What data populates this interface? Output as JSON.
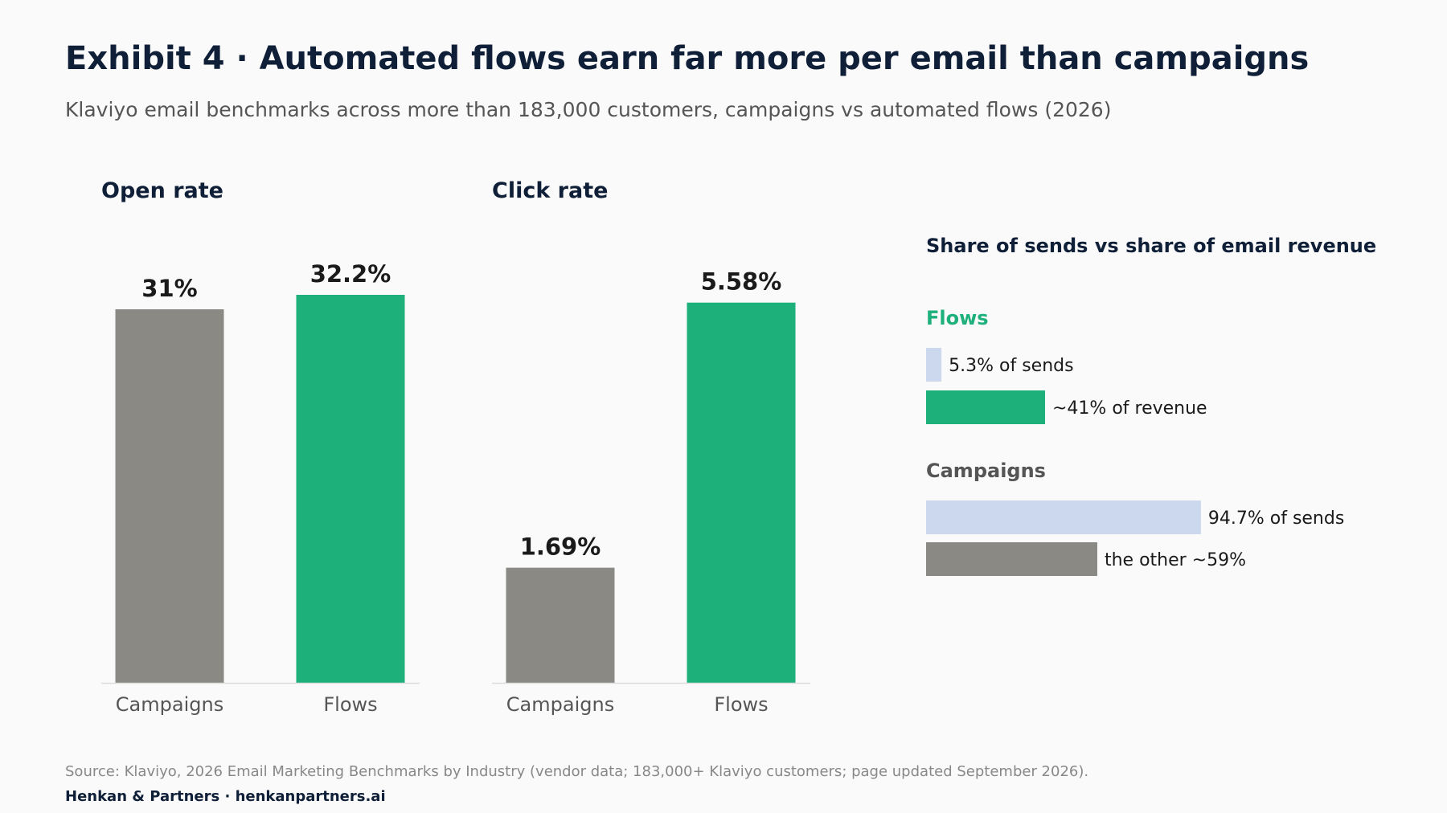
{
  "title": "Exhibit 4 · Automated flows earn far more per email than campaigns",
  "subtitle": "Klaviyo email benchmarks across more than 183,000 customers, campaigns vs automated flows (2026)",
  "colors": {
    "campaigns": "#8a8984",
    "flows": "#1db07b",
    "sends": "#cbd8ee",
    "campaigns_text": "#555555",
    "flows_text": "#1db07b"
  },
  "chart_data": [
    {
      "type": "bar",
      "title": "Open rate",
      "categories": [
        "Campaigns",
        "Flows"
      ],
      "values": [
        31,
        32.2
      ],
      "value_labels": [
        "31%",
        "32.2%"
      ],
      "ylim": [
        0,
        34
      ]
    },
    {
      "type": "bar",
      "title": "Click rate",
      "categories": [
        "Campaigns",
        "Flows"
      ],
      "values": [
        1.69,
        5.58
      ],
      "value_labels": [
        "1.69%",
        "5.58%"
      ],
      "ylim": [
        0,
        5.6
      ]
    },
    {
      "type": "bar",
      "orientation": "horizontal",
      "title": "Share of sends vs share of email revenue",
      "groups": [
        {
          "name": "Flows",
          "bars": [
            {
              "kind": "sends",
              "value": 5.3,
              "label": "5.3% of sends"
            },
            {
              "kind": "revenue",
              "value": 41,
              "label": "~41% of revenue"
            }
          ]
        },
        {
          "name": "Campaigns",
          "bars": [
            {
              "kind": "sends",
              "value": 94.7,
              "label": "94.7% of sends"
            },
            {
              "kind": "revenue",
              "value": 59,
              "label": "the other ~59%"
            }
          ]
        }
      ]
    }
  ],
  "footer": {
    "source": "Source: Klaviyo, 2026 Email Marketing Benchmarks by Industry (vendor data; 183,000+ Klaviyo customers; page updated September 2026).",
    "brand": "Henkan & Partners · henkanpartners.ai"
  }
}
